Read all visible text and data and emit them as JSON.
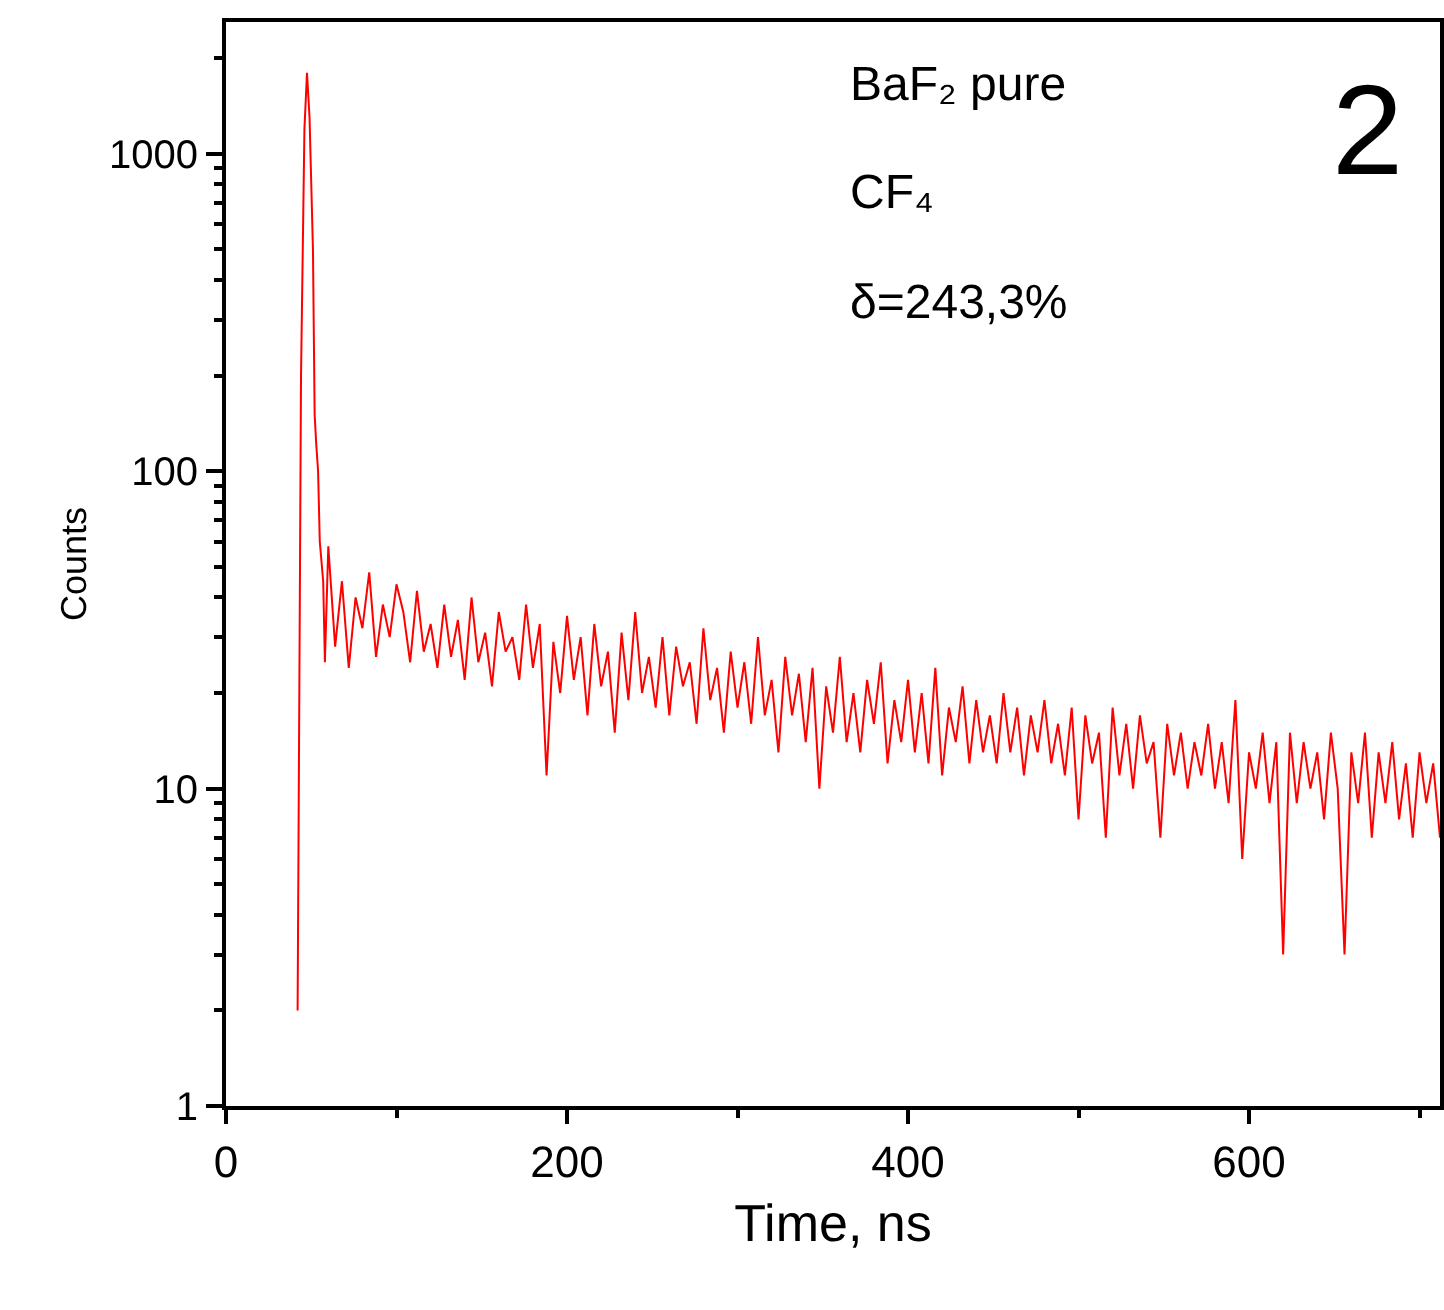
{
  "chart_data": {
    "type": "line",
    "xlabel": "Time, ns",
    "ylabel": "Counts",
    "log": "y",
    "grid": false,
    "marker": "none",
    "line_style": "solid",
    "xlim": [
      0,
      712
    ],
    "xticks": [
      0,
      200,
      400,
      600
    ],
    "ylim": [
      1,
      2600
    ],
    "yticks": [
      1,
      10,
      100,
      1000
    ],
    "annotations": [
      "BaF₂ pure",
      "CF₄",
      "δ=243,3%",
      "2"
    ],
    "series": [
      {
        "color": "#ff0000",
        "x": [
          42,
          44,
          46,
          47.5,
          49,
          51,
          52,
          53,
          54,
          55,
          57,
          58,
          60,
          64,
          68,
          72,
          76,
          80,
          84,
          88,
          92,
          96,
          100,
          104,
          108,
          112,
          116,
          120,
          124,
          128,
          132,
          136,
          140,
          144,
          148,
          152,
          156,
          160,
          164,
          168,
          172,
          176,
          180,
          184,
          188,
          192,
          196,
          200,
          204,
          208,
          212,
          216,
          220,
          224,
          228,
          232,
          236,
          240,
          244,
          248,
          252,
          256,
          260,
          264,
          268,
          272,
          276,
          280,
          284,
          288,
          292,
          296,
          300,
          304,
          308,
          312,
          316,
          320,
          324,
          328,
          332,
          336,
          340,
          344,
          348,
          352,
          356,
          360,
          364,
          368,
          372,
          376,
          380,
          384,
          388,
          392,
          396,
          400,
          404,
          408,
          412,
          416,
          420,
          424,
          428,
          432,
          436,
          440,
          444,
          448,
          452,
          456,
          460,
          464,
          468,
          472,
          476,
          480,
          484,
          488,
          492,
          496,
          500,
          504,
          508,
          512,
          516,
          520,
          524,
          528,
          532,
          536,
          540,
          544,
          548,
          552,
          556,
          560,
          564,
          568,
          572,
          576,
          580,
          584,
          588,
          592,
          596,
          600,
          604,
          608,
          612,
          616,
          620,
          624,
          628,
          632,
          636,
          640,
          644,
          648,
          652,
          656,
          660,
          664,
          668,
          672,
          676,
          680,
          684,
          688,
          692,
          696,
          700,
          704,
          708,
          712
        ],
        "values": [
          2,
          200,
          1200,
          1800,
          1300,
          500,
          150,
          120,
          100,
          60,
          45,
          25,
          58,
          28,
          45,
          24,
          40,
          32,
          48,
          26,
          38,
          30,
          44,
          36,
          25,
          42,
          27,
          33,
          24,
          38,
          26,
          34,
          22,
          40,
          25,
          31,
          21,
          36,
          27,
          30,
          22,
          38,
          24,
          33,
          11,
          29,
          20,
          35,
          22,
          30,
          17,
          33,
          21,
          27,
          15,
          31,
          19,
          36,
          20,
          26,
          18,
          30,
          17,
          28,
          21,
          25,
          16,
          32,
          19,
          24,
          15,
          27,
          18,
          25,
          16,
          30,
          17,
          22,
          13,
          26,
          17,
          23,
          14,
          24,
          10,
          21,
          15,
          26,
          14,
          20,
          13,
          22,
          16,
          25,
          12,
          19,
          14,
          22,
          13,
          20,
          12,
          24,
          11,
          18,
          14,
          21,
          12,
          19,
          13,
          17,
          12,
          20,
          13,
          18,
          11,
          17,
          13,
          19,
          12,
          16,
          11,
          18,
          8,
          17,
          12,
          15,
          7,
          18,
          11,
          16,
          10,
          17,
          12,
          14,
          7,
          16,
          11,
          15,
          10,
          14,
          11,
          16,
          10,
          14,
          9,
          19,
          6,
          13,
          10,
          15,
          9,
          14,
          3,
          15,
          9,
          14,
          10,
          13,
          8,
          15,
          10,
          3,
          13,
          9,
          15,
          7,
          13,
          9,
          14,
          8,
          12,
          7,
          13,
          9,
          12,
          7
        ]
      }
    ]
  }
}
